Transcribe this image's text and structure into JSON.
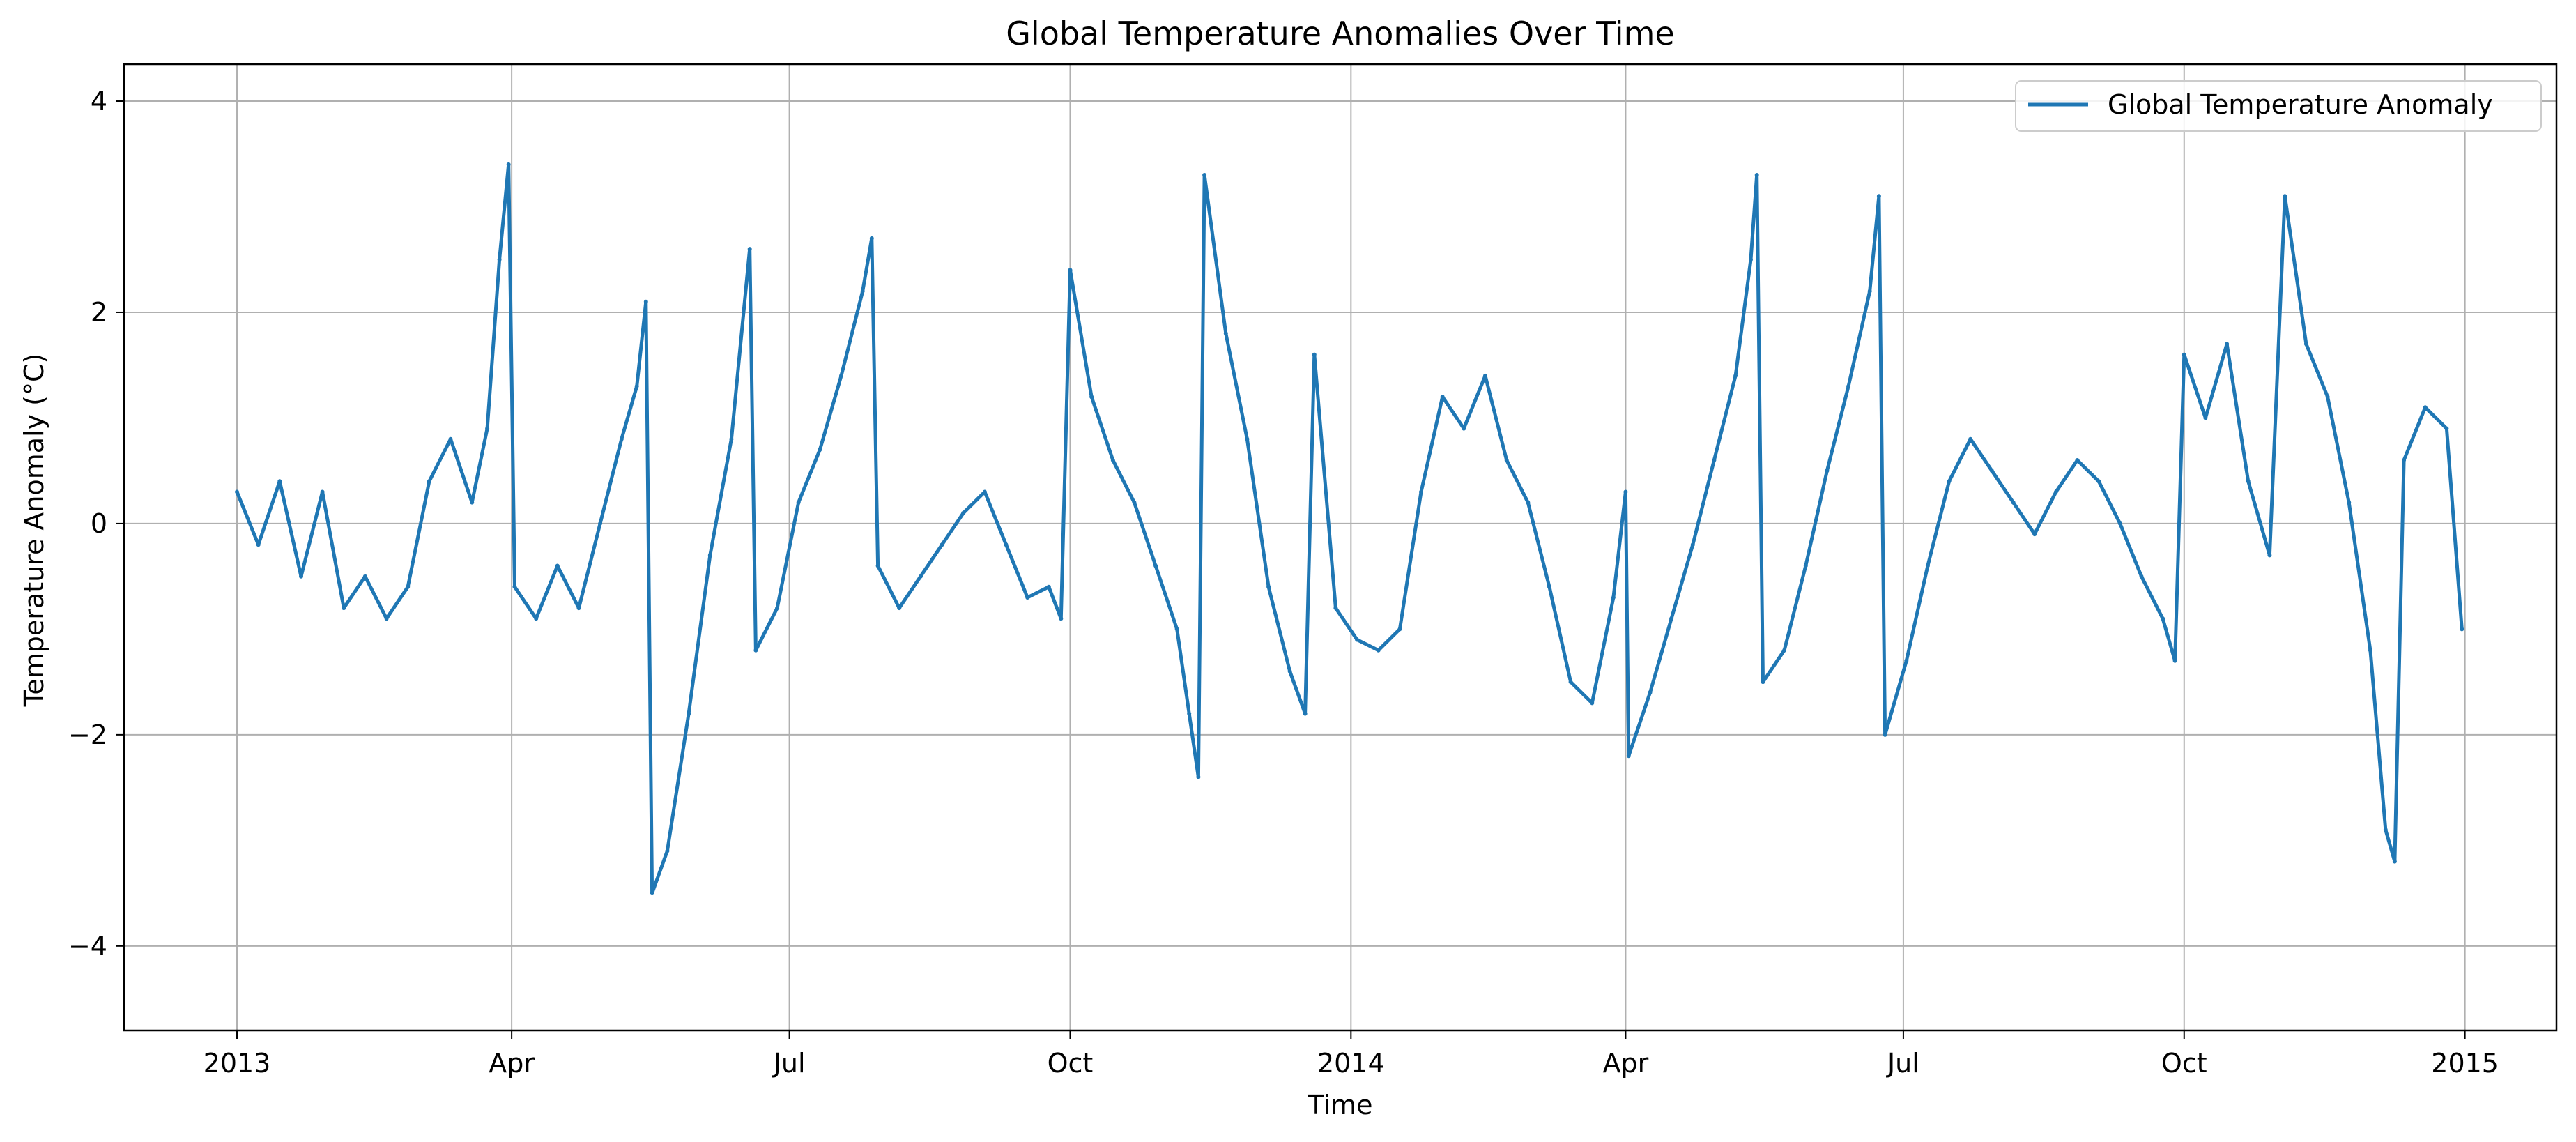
{
  "chart_data": {
    "type": "line",
    "title": "Global Temperature Anomalies Over Time",
    "xlabel": "Time",
    "ylabel": "Temperature Anomaly (°C)",
    "x_range": [
      "2012-11-25",
      "2015-01-31"
    ],
    "ylim": [
      -4.8,
      4.35
    ],
    "grid": true,
    "legend_position": "top-right",
    "x_ticks": [
      {
        "date": "2013-01-01",
        "label": "2013"
      },
      {
        "date": "2013-04-01",
        "label": "Apr"
      },
      {
        "date": "2013-07-01",
        "label": "Jul"
      },
      {
        "date": "2013-10-01",
        "label": "Oct"
      },
      {
        "date": "2014-01-01",
        "label": "2014"
      },
      {
        "date": "2014-04-01",
        "label": "Apr"
      },
      {
        "date": "2014-07-01",
        "label": "Jul"
      },
      {
        "date": "2014-10-01",
        "label": "Oct"
      },
      {
        "date": "2015-01-01",
        "label": "2015"
      }
    ],
    "y_ticks": [
      {
        "value": -4,
        "label": "−4"
      },
      {
        "value": -2,
        "label": "−2"
      },
      {
        "value": 0,
        "label": "0"
      },
      {
        "value": 2,
        "label": "2"
      },
      {
        "value": 4,
        "label": "4"
      }
    ],
    "series": [
      {
        "name": "Global Temperature Anomaly",
        "color": "#1f77b4",
        "points": [
          [
            "2013-01-01",
            0.3
          ],
          [
            "2013-01-08",
            -0.2
          ],
          [
            "2013-01-15",
            0.4
          ],
          [
            "2013-01-22",
            -0.5
          ],
          [
            "2013-01-29",
            0.3
          ],
          [
            "2013-02-05",
            -0.8
          ],
          [
            "2013-02-12",
            -0.5
          ],
          [
            "2013-02-19",
            -0.9
          ],
          [
            "2013-02-26",
            -0.6
          ],
          [
            "2013-03-05",
            0.4
          ],
          [
            "2013-03-12",
            0.8
          ],
          [
            "2013-03-19",
            0.2
          ],
          [
            "2013-03-24",
            0.9
          ],
          [
            "2013-03-28",
            2.5
          ],
          [
            "2013-03-31",
            3.4
          ],
          [
            "2013-04-02",
            -0.6
          ],
          [
            "2013-04-09",
            -0.9
          ],
          [
            "2013-04-16",
            -0.4
          ],
          [
            "2013-04-23",
            -0.8
          ],
          [
            "2013-04-30",
            0.0
          ],
          [
            "2013-05-07",
            0.8
          ],
          [
            "2013-05-12",
            1.3
          ],
          [
            "2013-05-15",
            2.1
          ],
          [
            "2013-05-17",
            -3.5
          ],
          [
            "2013-05-22",
            -3.1
          ],
          [
            "2013-05-29",
            -1.8
          ],
          [
            "2013-06-05",
            -0.3
          ],
          [
            "2013-06-12",
            0.8
          ],
          [
            "2013-06-18",
            2.6
          ],
          [
            "2013-06-20",
            -1.2
          ],
          [
            "2013-06-27",
            -0.8
          ],
          [
            "2013-07-04",
            0.2
          ],
          [
            "2013-07-11",
            0.7
          ],
          [
            "2013-07-18",
            1.4
          ],
          [
            "2013-07-25",
            2.2
          ],
          [
            "2013-07-28",
            2.7
          ],
          [
            "2013-07-30",
            -0.4
          ],
          [
            "2013-08-06",
            -0.8
          ],
          [
            "2013-08-13",
            -0.5
          ],
          [
            "2013-08-20",
            -0.2
          ],
          [
            "2013-08-27",
            0.1
          ],
          [
            "2013-09-03",
            0.3
          ],
          [
            "2013-09-10",
            -0.2
          ],
          [
            "2013-09-17",
            -0.7
          ],
          [
            "2013-09-24",
            -0.6
          ],
          [
            "2013-09-28",
            -0.9
          ],
          [
            "2013-10-01",
            2.4
          ],
          [
            "2013-10-08",
            1.2
          ],
          [
            "2013-10-15",
            0.6
          ],
          [
            "2013-10-22",
            0.2
          ],
          [
            "2013-10-29",
            -0.4
          ],
          [
            "2013-11-05",
            -1.0
          ],
          [
            "2013-11-09",
            -1.8
          ],
          [
            "2013-11-12",
            -2.4
          ],
          [
            "2013-11-14",
            3.3
          ],
          [
            "2013-11-21",
            1.8
          ],
          [
            "2013-11-28",
            0.8
          ],
          [
            "2013-12-05",
            -0.6
          ],
          [
            "2013-12-12",
            -1.4
          ],
          [
            "2013-12-17",
            -1.8
          ],
          [
            "2013-12-20",
            1.6
          ],
          [
            "2013-12-27",
            -0.8
          ],
          [
            "2014-01-03",
            -1.1
          ],
          [
            "2014-01-10",
            -1.2
          ],
          [
            "2014-01-17",
            -1.0
          ],
          [
            "2014-01-24",
            0.3
          ],
          [
            "2014-01-31",
            1.2
          ],
          [
            "2014-02-07",
            0.9
          ],
          [
            "2014-02-14",
            1.4
          ],
          [
            "2014-02-21",
            0.6
          ],
          [
            "2014-02-28",
            0.2
          ],
          [
            "2014-03-07",
            -0.6
          ],
          [
            "2014-03-14",
            -1.5
          ],
          [
            "2014-03-21",
            -1.7
          ],
          [
            "2014-03-28",
            -0.7
          ],
          [
            "2014-04-01",
            0.3
          ],
          [
            "2014-04-02",
            -2.2
          ],
          [
            "2014-04-09",
            -1.6
          ],
          [
            "2014-04-16",
            -0.9
          ],
          [
            "2014-04-23",
            -0.2
          ],
          [
            "2014-04-30",
            0.6
          ],
          [
            "2014-05-07",
            1.4
          ],
          [
            "2014-05-12",
            2.5
          ],
          [
            "2014-05-14",
            3.3
          ],
          [
            "2014-05-16",
            -1.5
          ],
          [
            "2014-05-23",
            -1.2
          ],
          [
            "2014-05-30",
            -0.4
          ],
          [
            "2014-06-06",
            0.5
          ],
          [
            "2014-06-13",
            1.3
          ],
          [
            "2014-06-20",
            2.2
          ],
          [
            "2014-06-23",
            3.1
          ],
          [
            "2014-06-25",
            -2.0
          ],
          [
            "2014-07-02",
            -1.3
          ],
          [
            "2014-07-09",
            -0.4
          ],
          [
            "2014-07-16",
            0.4
          ],
          [
            "2014-07-23",
            0.8
          ],
          [
            "2014-07-30",
            0.5
          ],
          [
            "2014-08-06",
            0.2
          ],
          [
            "2014-08-13",
            -0.1
          ],
          [
            "2014-08-20",
            0.3
          ],
          [
            "2014-08-27",
            0.6
          ],
          [
            "2014-09-03",
            0.4
          ],
          [
            "2014-09-10",
            0.0
          ],
          [
            "2014-09-17",
            -0.5
          ],
          [
            "2014-09-24",
            -0.9
          ],
          [
            "2014-09-28",
            -1.3
          ],
          [
            "2014-10-01",
            1.6
          ],
          [
            "2014-10-08",
            1.0
          ],
          [
            "2014-10-15",
            1.7
          ],
          [
            "2014-10-22",
            0.4
          ],
          [
            "2014-10-29",
            -0.3
          ],
          [
            "2014-11-03",
            3.1
          ],
          [
            "2014-11-10",
            1.7
          ],
          [
            "2014-11-17",
            1.2
          ],
          [
            "2014-11-24",
            0.2
          ],
          [
            "2014-12-01",
            -1.2
          ],
          [
            "2014-12-06",
            -2.9
          ],
          [
            "2014-12-09",
            -3.2
          ],
          [
            "2014-12-12",
            0.6
          ],
          [
            "2014-12-19",
            1.1
          ],
          [
            "2014-12-26",
            0.9
          ],
          [
            "2014-12-31",
            -1.0
          ]
        ]
      }
    ]
  }
}
